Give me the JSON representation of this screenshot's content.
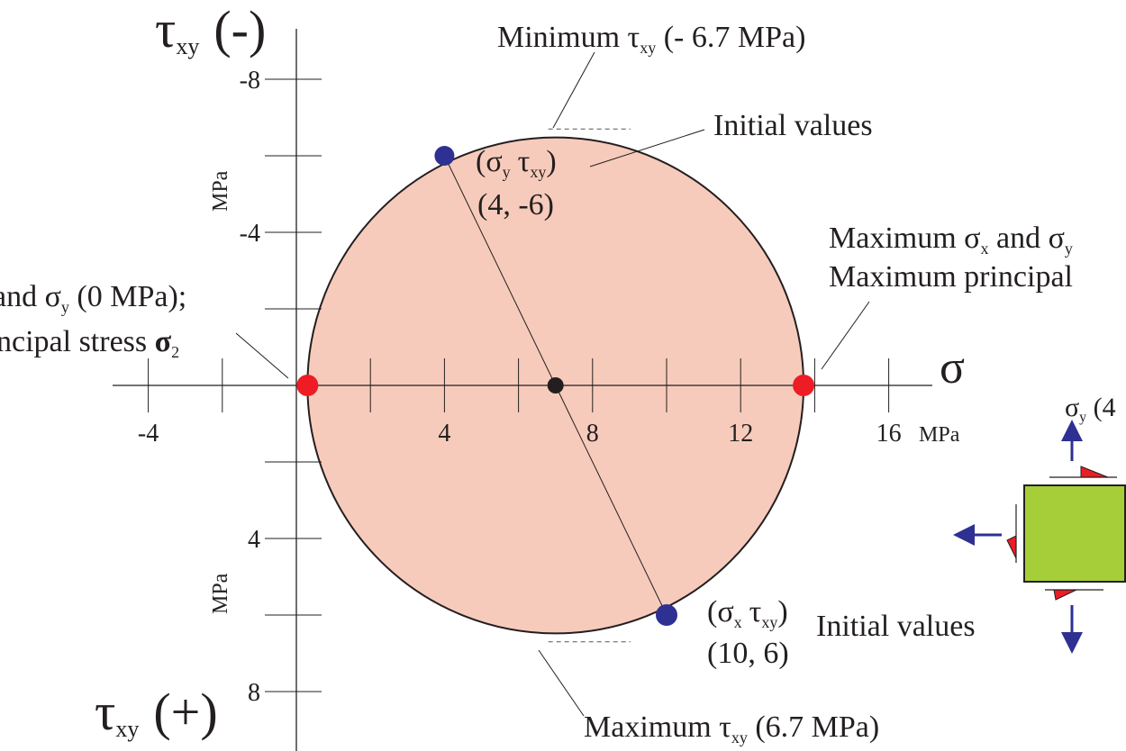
{
  "colors": {
    "circle_fill": "#f7cbbb",
    "axis": "#231f20",
    "principal_point": "#ee1c25",
    "stress_point": "#2e3092",
    "center_point": "#231f20",
    "element_fill": "#a6ce39",
    "arrow": "#2e3092",
    "shear_triangle": "#ee1c25"
  },
  "axes": {
    "tau_top": {
      "symbol": "τ",
      "sub": "xy",
      "sign": "(-)"
    },
    "tau_bottom": {
      "symbol": "τ",
      "sub": "xy",
      "sign": "(+)"
    },
    "sigma": "σ",
    "sigma_unit": "MPa",
    "tau_unit_upper": "MPa",
    "tau_unit_lower": "MPa",
    "sigma_ticks": [
      {
        "value": -4,
        "label": "-4"
      },
      {
        "value": 4,
        "label": "4"
      },
      {
        "value": 8,
        "label": "8"
      },
      {
        "value": 12,
        "label": "12"
      },
      {
        "value": 16,
        "label": "16"
      }
    ],
    "tau_ticks": [
      {
        "value": -8,
        "label": "-8"
      },
      {
        "value": -4,
        "label": "-4"
      },
      {
        "value": 4,
        "label": "4"
      },
      {
        "value": 8,
        "label": "8"
      }
    ]
  },
  "circle": {
    "center": 7,
    "radius": 6.7
  },
  "points": {
    "sigma_y": {
      "sigma": 4,
      "tau": -6,
      "sym": "σ",
      "sub": "y",
      "tau_sym": "τ",
      "tau_sub": "xy",
      "coords": "(4, -6)"
    },
    "sigma_x": {
      "sigma": 10,
      "tau": 6,
      "sym": "σ",
      "sub": "x",
      "tau_sym": "τ",
      "tau_sub": "xy",
      "coords": "(10, 6)",
      "note": "Initial values"
    }
  },
  "annotations": {
    "min_tau": {
      "prefix": "Minimum ",
      "sym": "τ",
      "sub": "xy",
      "suffix": " (- 6.7 MPa)"
    },
    "max_tau": {
      "prefix": "Maximum ",
      "sym": "τ",
      "sub": "xy",
      "suffix": " (6.7 MPa)"
    },
    "initial_values_top": "Initial values",
    "right": {
      "line1_prefix": "Maximum ",
      "line1_s1": "σ",
      "line1_sub1": "x",
      "line1_mid": " and ",
      "line1_s2": "σ",
      "line1_sub2": "y",
      "line2": "Maximum principal"
    },
    "left": {
      "line1_prefix": "and ",
      "line1_sym": "σ",
      "line1_sub": "y",
      "line1_suffix": " (0 MPa);",
      "line2_prefix": "ncipal stress ",
      "line2_sym": "σ",
      "line2_sub": "2"
    }
  },
  "element": {
    "label_sym": "σ",
    "label_sub": "y",
    "label_suffix": " (4"
  }
}
